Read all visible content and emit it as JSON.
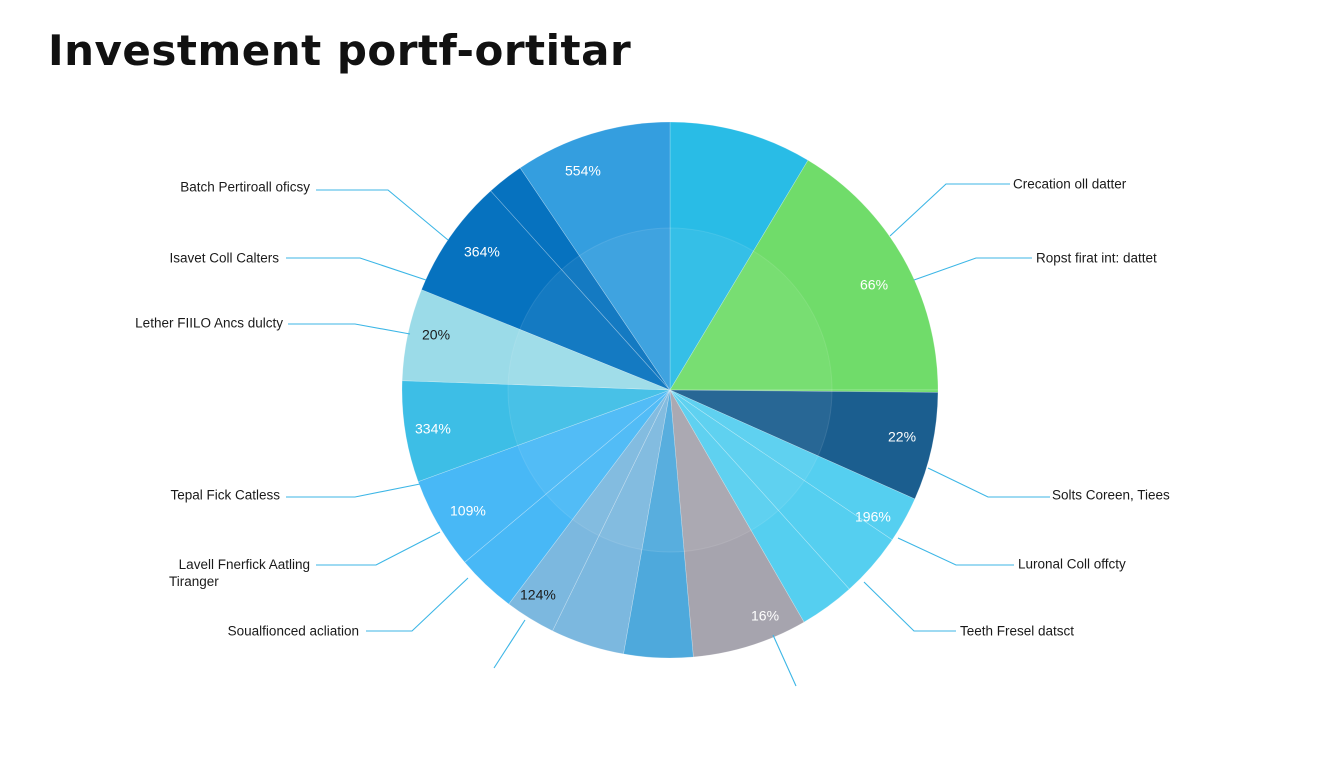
{
  "chart_data": {
    "type": "pie",
    "title": "Investment portf-ortitar",
    "slices": [
      {
        "label": "",
        "value_label": "",
        "color": "#29BCE6"
      },
      {
        "label": "Crecation oll datter",
        "value_label": "",
        "color": "#70DC6A"
      },
      {
        "label": "Ropst firat int: dattet",
        "value_label": "66%",
        "color": "#70DC6A"
      },
      {
        "label": "",
        "value_label": "22%",
        "color": "#1B5E8F"
      },
      {
        "label": "Solts Coreen, Tiees",
        "value_label": "",
        "color": "#55CFF0"
      },
      {
        "label": "Luronal Coll offcty",
        "value_label": "196%",
        "color": "#55CFF0"
      },
      {
        "label": "Teeth Fresel datsct",
        "value_label": "",
        "color": "#55CFF0"
      },
      {
        "label": "",
        "value_label": "16%",
        "color": "#A6A4AE"
      },
      {
        "label": "",
        "value_label": "",
        "color": "#4EA9DC"
      },
      {
        "label": "",
        "value_label": "124%",
        "color": "#7CB8DF"
      },
      {
        "label": "Soualfionced acliation",
        "value_label": "",
        "color": "#7CB8DF"
      },
      {
        "label": "Lavell Fnerfick Aatling Tiranger",
        "value_label": "109%",
        "color": "#48B8F6"
      },
      {
        "label": "Tepal Fick Catless",
        "value_label": "",
        "color": "#48B8F6"
      },
      {
        "label": "",
        "value_label": "334%",
        "color": "#3DBEE6"
      },
      {
        "label": "Lether FIILO Ancs dulcty",
        "value_label": "20%",
        "color": "#9BDBE8"
      },
      {
        "label": "Isavet Coll Calters",
        "value_label": "364%",
        "color": "#0672BF"
      },
      {
        "label": "Batch Pertiroall oficsy",
        "value_label": "",
        "color": "#0672BF"
      },
      {
        "label": "",
        "value_label": "554%",
        "color": "#349EDF"
      }
    ]
  }
}
